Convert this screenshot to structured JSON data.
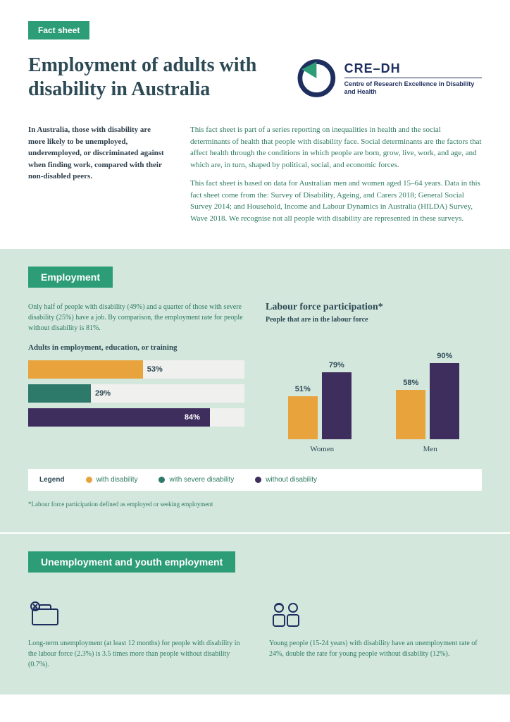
{
  "badge": {
    "label": "Fact sheet",
    "bg": "#2d9d78",
    "fg": "#ffffff"
  },
  "title": "Employment of adults with disability in Australia",
  "title_color": "#2d4a54",
  "logo": {
    "title": "CRE–DH",
    "sub": "Centre of Research Excellence in Disability and Health",
    "ring_color": "#1e2e5e",
    "wedge_color": "#2d9d78"
  },
  "intro": {
    "left": "In Australia, those with disability are more likely to be unemployed, underemployed, or discriminated against when finding work, compared with their non-disabled peers.",
    "right1": "This fact sheet is part of a series reporting on inequalities in health and the social determinants of health that people with disability face. Social determinants are the factors that affect health through the conditions in which people are born, grow, live, work, and age, and which are, in turn, shaped by political, social, and economic forces.",
    "right2": "This fact sheet is based on data for Australian men and women aged 15–64 years. Data in this fact sheet come from the: Survey of Disability, Ageing, and Carers 2018; General Social Survey 2014; and Household, Income and Labour Dynamics in Australia (HILDA) Survey, Wave 2018. We recognise not all people with disability are represented in these surveys."
  },
  "section1": {
    "badge": "Employment",
    "intro": "Only half of people with disability (49%) and a quarter of those with severe disability (25%) have a job. By comparison, the employment rate for people without disability is 81%.",
    "hbar": {
      "title": "Adults in employment, education, or training",
      "track_bg": "#f0f0ee",
      "bars": [
        {
          "value": 53,
          "label": "53%",
          "color": "#e8a33d",
          "text_color": "#2d4a54"
        },
        {
          "value": 29,
          "label": "29%",
          "color": "#2d7a6a",
          "text_color": "#2d4a54"
        },
        {
          "value": 84,
          "label": "84%",
          "color": "#3d2e5e",
          "text_color": "#ffffff"
        }
      ]
    },
    "vbar": {
      "title": "Labour force participation*",
      "sub": "People that are in the labour force",
      "max": 100,
      "groups": [
        {
          "cat": "Women",
          "bars": [
            {
              "value": 51,
              "label": "51%",
              "color": "#e8a33d"
            },
            {
              "value": 79,
              "label": "79%",
              "color": "#3d2e5e"
            }
          ]
        },
        {
          "cat": "Men",
          "bars": [
            {
              "value": 58,
              "label": "58%",
              "color": "#e8a33d"
            },
            {
              "value": 90,
              "label": "90%",
              "color": "#3d2e5e"
            }
          ]
        }
      ]
    },
    "legend": {
      "title": "Legend",
      "items": [
        {
          "label": "with disability",
          "color": "#e8a33d"
        },
        {
          "label": "with severe disability",
          "color": "#2d7a6a"
        },
        {
          "label": "without disability",
          "color": "#3d2e5e"
        }
      ]
    },
    "footnote": "*Labour force participation defined as employed or seeking employment"
  },
  "section2": {
    "badge": "Unemployment and youth employment",
    "icon_color": "#1e2e5e",
    "blocks": [
      {
        "text": "Long-term unemployment (at least 12 months) for people with disability in the labour force (2.3%) is 3.5 times more than people without disability (0.7%)."
      },
      {
        "text": "Young people (15-24 years) with disability have an unemployment rate of 24%, double the rate for young people without disability (12%)."
      }
    ]
  },
  "colors": {
    "section_bg": "#d3e7dd",
    "badge_bg": "#2d9d78",
    "badge_fg": "#ffffff",
    "teal_text": "#2d7a5f"
  }
}
